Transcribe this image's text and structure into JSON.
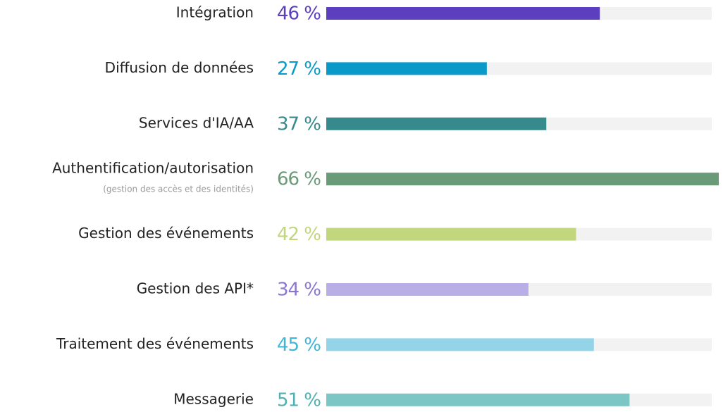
{
  "chart_data": {
    "type": "bar",
    "categories": [
      "Intégration",
      "Diffusion de données",
      "Services d'IA/AA",
      "Authentification/autorisation",
      "Gestion des événements",
      "Gestion des API*",
      "Traitement des événements",
      "Messagerie"
    ],
    "category_sublabels": [
      null,
      null,
      null,
      "(gestion des accès et des identités)",
      null,
      null,
      null,
      null
    ],
    "values": [
      46,
      27,
      37,
      66,
      42,
      34,
      45,
      51
    ],
    "value_labels": [
      "46 %",
      "27 %",
      "37 %",
      "66 %",
      "42 %",
      "34 %",
      "45 %",
      "51 %"
    ],
    "colors": [
      "#5b3fbf",
      "#0a9ac9",
      "#378a8c",
      "#6a9a78",
      "#c2d67e",
      "#b9aee6",
      "#94d4e8",
      "#7cc6c6"
    ],
    "label_colors": [
      "#5b3fbf",
      "#0a9ac9",
      "#378a8c",
      "#6a9a78",
      "#c2d67e",
      "#8a78d0",
      "#3fb6d8",
      "#4fb1b1"
    ]
  }
}
